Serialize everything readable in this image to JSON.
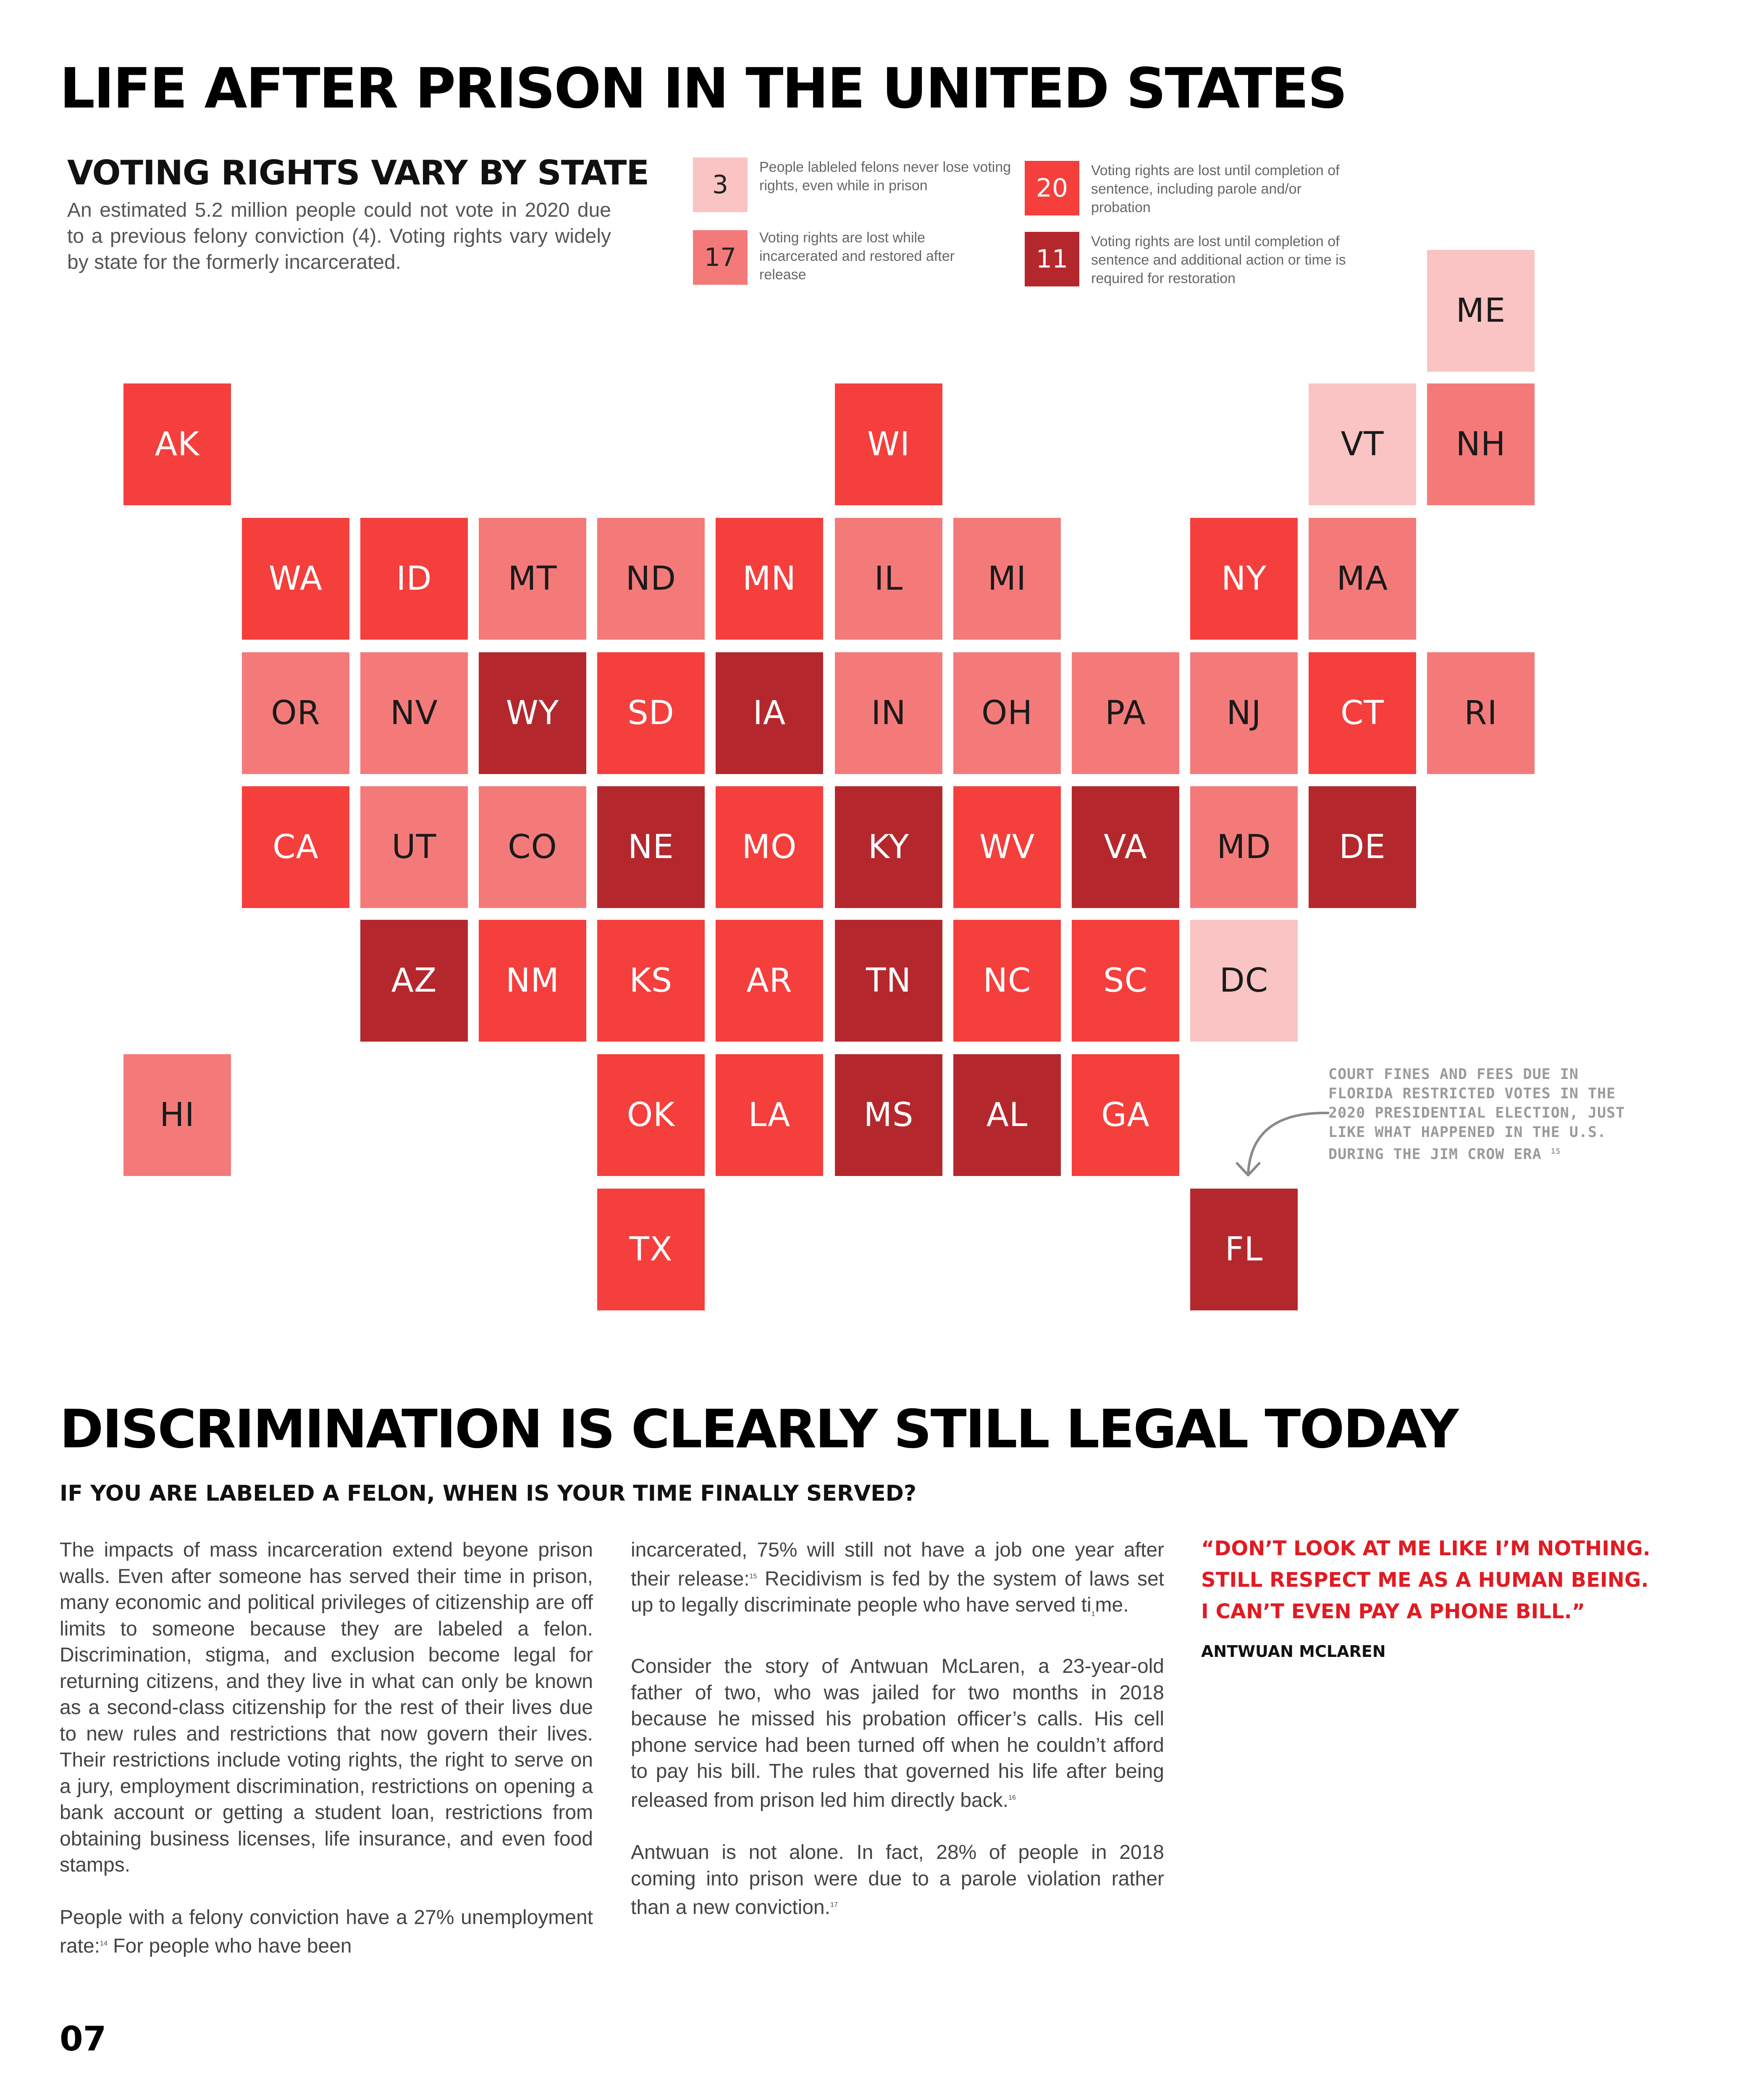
{
  "page": {
    "title": "LIFE AFTER PRISON IN THE UNITED STATES",
    "page_number": "07"
  },
  "voting": {
    "title": "VOTING RIGHTS VARY BY STATE",
    "intro": "An estimated 5.2 million people could not vote in 2020 due to a previous felony conviction (4). Voting rights vary widely by state for the formerly incarcerated.",
    "colors": {
      "never_lose": "#f9c4c3",
      "incarceration_only": "#f47a7a",
      "sentence_completion": "#f43f3d",
      "additional_action": "#b4282d"
    },
    "legend": [
      {
        "category": "never_lose",
        "count": "3",
        "text": "People lableled felons never lose voting rights, even while in prison",
        "text_color": "#222222"
      },
      {
        "category": "sentence_completion",
        "count": "20",
        "text": "Voting rights are lost until completion of sentence, including parole and/or probation",
        "text_color": "#ffffff"
      },
      {
        "category": "incarceration_only",
        "count": "17",
        "text": "Voting rights are lost while incarcerated and restored after release",
        "text_color": "#222222"
      },
      {
        "category": "additional_action",
        "count": "11",
        "text": "Voting rights are lost until completion of sentence and additional action or time is required for restoration",
        "text_color": "#ffffff"
      }
    ],
    "states": [
      {
        "abbr": "ME",
        "category": "never_lose",
        "text_color": "#1a1a1a"
      },
      {
        "abbr": "AK",
        "category": "sentence_completion",
        "text_color": "#ffffff"
      },
      {
        "abbr": "WI",
        "category": "sentence_completion",
        "text_color": "#ffffff"
      },
      {
        "abbr": "VT",
        "category": "never_lose",
        "text_color": "#1a1a1a"
      },
      {
        "abbr": "NH",
        "category": "incarceration_only",
        "text_color": "#1a1a1a"
      },
      {
        "abbr": "WA",
        "category": "sentence_completion",
        "text_color": "#ffffff"
      },
      {
        "abbr": "ID",
        "category": "sentence_completion",
        "text_color": "#ffffff"
      },
      {
        "abbr": "MT",
        "category": "incarceration_only",
        "text_color": "#1a1a1a"
      },
      {
        "abbr": "ND",
        "category": "incarceration_only",
        "text_color": "#1a1a1a"
      },
      {
        "abbr": "MN",
        "category": "sentence_completion",
        "text_color": "#ffffff"
      },
      {
        "abbr": "IL",
        "category": "incarceration_only",
        "text_color": "#1a1a1a"
      },
      {
        "abbr": "MI",
        "category": "incarceration_only",
        "text_color": "#1a1a1a"
      },
      {
        "abbr": "NY",
        "category": "sentence_completion",
        "text_color": "#ffffff"
      },
      {
        "abbr": "MA",
        "category": "incarceration_only",
        "text_color": "#1a1a1a"
      },
      {
        "abbr": "OR",
        "category": "incarceration_only",
        "text_color": "#1a1a1a"
      },
      {
        "abbr": "NV",
        "category": "incarceration_only",
        "text_color": "#1a1a1a"
      },
      {
        "abbr": "WY",
        "category": "additional_action",
        "text_color": "#ffffff"
      },
      {
        "abbr": "SD",
        "category": "sentence_completion",
        "text_color": "#ffffff"
      },
      {
        "abbr": "IA",
        "category": "additional_action",
        "text_color": "#ffffff"
      },
      {
        "abbr": "IN",
        "category": "incarceration_only",
        "text_color": "#1a1a1a"
      },
      {
        "abbr": "OH",
        "category": "incarceration_only",
        "text_color": "#1a1a1a"
      },
      {
        "abbr": "PA",
        "category": "incarceration_only",
        "text_color": "#1a1a1a"
      },
      {
        "abbr": "NJ",
        "category": "incarceration_only",
        "text_color": "#1a1a1a"
      },
      {
        "abbr": "CT",
        "category": "sentence_completion",
        "text_color": "#ffffff"
      },
      {
        "abbr": "RI",
        "category": "incarceration_only",
        "text_color": "#1a1a1a"
      },
      {
        "abbr": "CA",
        "category": "sentence_completion",
        "text_color": "#ffffff"
      },
      {
        "abbr": "UT",
        "category": "incarceration_only",
        "text_color": "#1a1a1a"
      },
      {
        "abbr": "CO",
        "category": "incarceration_only",
        "text_color": "#1a1a1a"
      },
      {
        "abbr": "NE",
        "category": "additional_action",
        "text_color": "#ffffff"
      },
      {
        "abbr": "MO",
        "category": "sentence_completion",
        "text_color": "#ffffff"
      },
      {
        "abbr": "KY",
        "category": "additional_action",
        "text_color": "#ffffff"
      },
      {
        "abbr": "WV",
        "category": "sentence_completion",
        "text_color": "#ffffff"
      },
      {
        "abbr": "VA",
        "category": "additional_action",
        "text_color": "#ffffff"
      },
      {
        "abbr": "MD",
        "category": "incarceration_only",
        "text_color": "#1a1a1a"
      },
      {
        "abbr": "DE",
        "category": "additional_action",
        "text_color": "#ffffff"
      },
      {
        "abbr": "AZ",
        "category": "additional_action",
        "text_color": "#ffffff"
      },
      {
        "abbr": "NM",
        "category": "sentence_completion",
        "text_color": "#ffffff"
      },
      {
        "abbr": "KS",
        "category": "sentence_completion",
        "text_color": "#ffffff"
      },
      {
        "abbr": "AR",
        "category": "sentence_completion",
        "text_color": "#ffffff"
      },
      {
        "abbr": "TN",
        "category": "additional_action",
        "text_color": "#ffffff"
      },
      {
        "abbr": "NC",
        "category": "sentence_completion",
        "text_color": "#ffffff"
      },
      {
        "abbr": "SC",
        "category": "sentence_completion",
        "text_color": "#ffffff"
      },
      {
        "abbr": "DC",
        "category": "never_lose",
        "text_color": "#1a1a1a"
      },
      {
        "abbr": "HI",
        "category": "incarceration_only",
        "text_color": "#1a1a1a"
      },
      {
        "abbr": "OK",
        "category": "sentence_completion",
        "text_color": "#ffffff"
      },
      {
        "abbr": "LA",
        "category": "sentence_completion",
        "text_color": "#ffffff"
      },
      {
        "abbr": "MS",
        "category": "additional_action",
        "text_color": "#ffffff"
      },
      {
        "abbr": "AL",
        "category": "additional_action",
        "text_color": "#ffffff"
      },
      {
        "abbr": "GA",
        "category": "sentence_completion",
        "text_color": "#ffffff"
      },
      {
        "abbr": "TX",
        "category": "sentence_completion",
        "text_color": "#ffffff"
      },
      {
        "abbr": "FL",
        "category": "additional_action",
        "text_color": "#ffffff"
      }
    ],
    "florida_note": "COURT FINES AND FEES DUE IN FLORIDA RESTRICTED VOTES IN THE 2020 PRESIDENTIAL ELECTION, JUST LIKE WHAT HAPPENED IN THE U.S. DURING THE JIM CROW ERA",
    "florida_note_ref": "15"
  },
  "discrimination": {
    "title": "DISCRIMINATION IS CLEARLY STILL LEGAL TODAY",
    "subtitle": "IF YOU ARE LABELED A FELON, WHEN IS YOUR TIME FINALLY SERVED?",
    "col1_p1": "The impacts of mass incarceration extend beyone prison walls. Even after someone has  served their time in prison, many economic and political privileges of citizenship are off limits to someone because they are labeled a felon. Discrimination, stigma, and exclusion become  legal for returning citizens, and they live in what can only be known as a second-class citizenship for the rest of their lives due to new rules and restrictions that now govern their lives. Their restrictions include voting rights, the right to serve on a jury, employment discrimination, restrictions on opening a bank account or getting a student loan, restrictions from obtaining business licenses, life insurance, and even food stamps.",
    "col1_p2": "People with a felony conviction have a 27% unemployment rate:",
    "col1_p2_ref": "14",
    "col1_p2_tail": " For people who have been",
    "col2_p1_a": "incarcerated, 75% will still not have a job one year after their release:",
    "col2_p1_ref": "15",
    "col2_p1_b": " Recidivism is fed by the system of laws set up to legally discriminate people who have served ti",
    "col2_p1_stray": "1",
    "col2_p1_c": "me.",
    "col2_p2": "Consider the story of Antwuan McLaren, a 23-year-old father of two, who was jailed for two months in 2018 because he missed his probation officer’s calls. His cell phone service had been turned off when he couldn’t afford to pay his bill. The rules that governed his life after being released from prison led him directly back.",
    "col2_p2_ref": "16",
    "col2_p3": "Antwuan is not alone. In fact, 28% of people in 2018 coming into prison were due to a parole violation rather than a new conviction.",
    "col2_p3_ref": "17",
    "quote_line1": "“DON’T LOOK AT ME LIKE I’M NOTHING.",
    "quote_line2": "STILL RESPECT ME AS A HUMAN BEING.",
    "quote_line3": "I CAN’T EVEN PAY A PHONE BILL.”",
    "quote_author": "ANTWUAN MCLAREN"
  }
}
